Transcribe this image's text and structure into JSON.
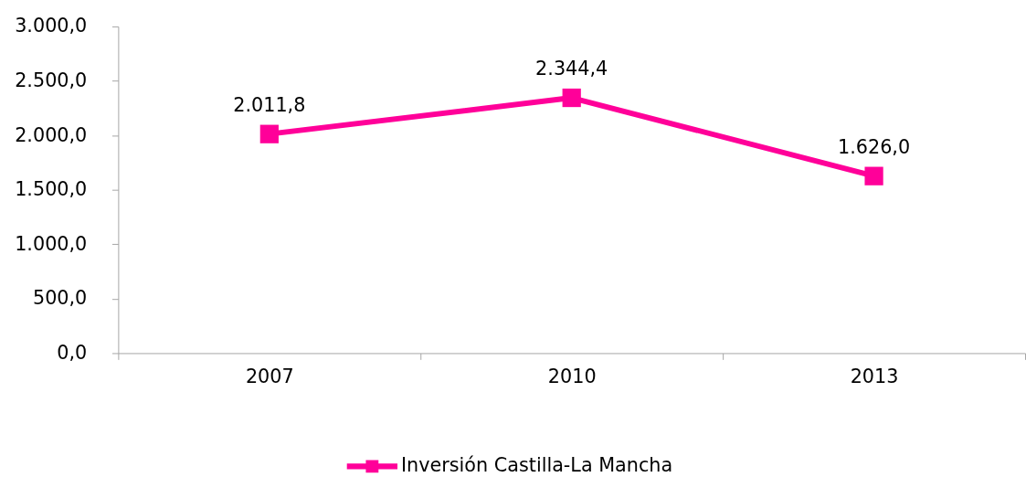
{
  "chart_data": {
    "type": "line",
    "categories": [
      "2007",
      "2010",
      "2013"
    ],
    "series": [
      {
        "name": "Inversión Castilla-La Mancha",
        "color": "#ff0099",
        "values": [
          2011.8,
          2344.4,
          1626.0
        ],
        "value_labels": [
          "2.011,8",
          "2.344,4",
          "1.626,0"
        ]
      }
    ],
    "ylim": [
      0,
      3000
    ],
    "yticks": [
      {
        "value": 0,
        "label": "0,0"
      },
      {
        "value": 500,
        "label": "500,0"
      },
      {
        "value": 1000,
        "label": "1.000,0"
      },
      {
        "value": 1500,
        "label": "1.500,0"
      },
      {
        "value": 2000,
        "label": "2.000,0"
      },
      {
        "value": 2500,
        "label": "2.500,0"
      },
      {
        "value": 3000,
        "label": "3.000,0"
      }
    ],
    "grid": false,
    "legend": "bottom",
    "marker": "square",
    "line_style": "solid"
  }
}
